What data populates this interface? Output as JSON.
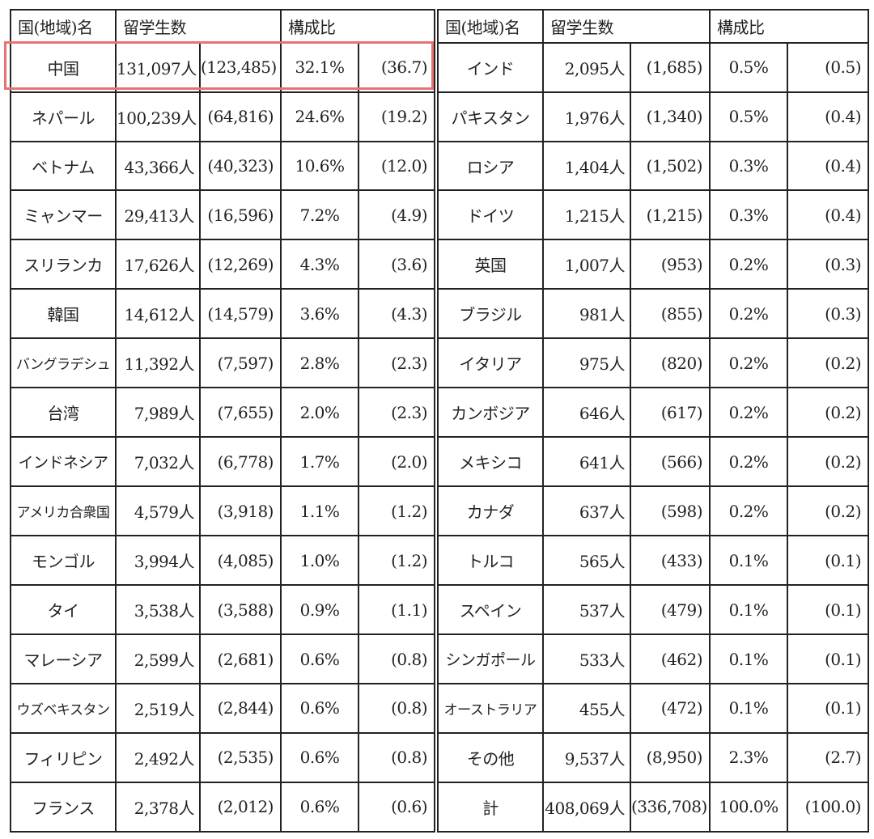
{
  "header": {
    "country_label": "国(地域)名",
    "students_label": "留学生数",
    "ratio_label": "構成比"
  },
  "highlight_color": "#e57373",
  "rows": [
    {
      "left": {
        "name": "中国",
        "count": "131,097人",
        "prev": "(123,485)",
        "ratio": "32.1%",
        "prev_ratio": "(36.7)"
      },
      "right": {
        "name": "インド",
        "count": "2,095人",
        "prev": "(1,685)",
        "ratio": "0.5%",
        "prev_ratio": "(0.5)"
      }
    },
    {
      "left": {
        "name": "ネパール",
        "count": "100,239人",
        "prev": "(64,816)",
        "ratio": "24.6%",
        "prev_ratio": "(19.2)"
      },
      "right": {
        "name": "パキスタン",
        "count": "1,976人",
        "prev": "(1,340)",
        "ratio": "0.5%",
        "prev_ratio": "(0.4)"
      }
    },
    {
      "left": {
        "name": "ベトナム",
        "count": "43,366人",
        "prev": "(40,323)",
        "ratio": "10.6%",
        "prev_ratio": "(12.0)"
      },
      "right": {
        "name": "ロシア",
        "count": "1,404人",
        "prev": "(1,502)",
        "ratio": "0.3%",
        "prev_ratio": "(0.4)"
      }
    },
    {
      "left": {
        "name": "ミャンマー",
        "count": "29,413人",
        "prev": "(16,596)",
        "ratio": "7.2%",
        "prev_ratio": "(4.9)"
      },
      "right": {
        "name": "ドイツ",
        "count": "1,215人",
        "prev": "(1,215)",
        "ratio": "0.3%",
        "prev_ratio": "(0.4)"
      }
    },
    {
      "left": {
        "name": "スリランカ",
        "count": "17,626人",
        "prev": "(12,269)",
        "ratio": "4.3%",
        "prev_ratio": "(3.6)"
      },
      "right": {
        "name": "英国",
        "count": "1,007人",
        "prev": "(953)",
        "ratio": "0.2%",
        "prev_ratio": "(0.3)"
      }
    },
    {
      "left": {
        "name": "韓国",
        "count": "14,612人",
        "prev": "(14,579)",
        "ratio": "3.6%",
        "prev_ratio": "(4.3)"
      },
      "right": {
        "name": "ブラジル",
        "count": "981人",
        "prev": "(855)",
        "ratio": "0.2%",
        "prev_ratio": "(0.3)"
      }
    },
    {
      "left": {
        "name": "バングラデシュ",
        "count": "11,392人",
        "prev": "(7,597)",
        "ratio": "2.8%",
        "prev_ratio": "(2.3)"
      },
      "right": {
        "name": "イタリア",
        "count": "975人",
        "prev": "(820)",
        "ratio": "0.2%",
        "prev_ratio": "(0.2)"
      }
    },
    {
      "left": {
        "name": "台湾",
        "count": "7,989人",
        "prev": "(7,655)",
        "ratio": "2.0%",
        "prev_ratio": "(2.3)"
      },
      "right": {
        "name": "カンボジア",
        "count": "646人",
        "prev": "(617)",
        "ratio": "0.2%",
        "prev_ratio": "(0.2)"
      }
    },
    {
      "left": {
        "name": "インドネシア",
        "count": "7,032人",
        "prev": "(6,778)",
        "ratio": "1.7%",
        "prev_ratio": "(2.0)"
      },
      "right": {
        "name": "メキシコ",
        "count": "641人",
        "prev": "(566)",
        "ratio": "0.2%",
        "prev_ratio": "(0.2)"
      }
    },
    {
      "left": {
        "name": "アメリカ合衆国",
        "count": "4,579人",
        "prev": "(3,918)",
        "ratio": "1.1%",
        "prev_ratio": "(1.2)"
      },
      "right": {
        "name": "カナダ",
        "count": "637人",
        "prev": "(598)",
        "ratio": "0.2%",
        "prev_ratio": "(0.2)"
      }
    },
    {
      "left": {
        "name": "モンゴル",
        "count": "3,994人",
        "prev": "(4,085)",
        "ratio": "1.0%",
        "prev_ratio": "(1.2)"
      },
      "right": {
        "name": "トルコ",
        "count": "565人",
        "prev": "(433)",
        "ratio": "0.1%",
        "prev_ratio": "(0.1)"
      }
    },
    {
      "left": {
        "name": "タイ",
        "count": "3,538人",
        "prev": "(3,588)",
        "ratio": "0.9%",
        "prev_ratio": "(1.1)"
      },
      "right": {
        "name": "スペイン",
        "count": "537人",
        "prev": "(479)",
        "ratio": "0.1%",
        "prev_ratio": "(0.1)"
      }
    },
    {
      "left": {
        "name": "マレーシア",
        "count": "2,599人",
        "prev": "(2,681)",
        "ratio": "0.6%",
        "prev_ratio": "(0.8)"
      },
      "right": {
        "name": "シンガポール",
        "count": "533人",
        "prev": "(462)",
        "ratio": "0.1%",
        "prev_ratio": "(0.1)"
      }
    },
    {
      "left": {
        "name": "ウズベキスタン",
        "count": "2,519人",
        "prev": "(2,844)",
        "ratio": "0.6%",
        "prev_ratio": "(0.8)"
      },
      "right": {
        "name": "オーストラリア",
        "count": "455人",
        "prev": "(472)",
        "ratio": "0.1%",
        "prev_ratio": "(0.1)"
      }
    },
    {
      "left": {
        "name": "フィリピン",
        "count": "2,492人",
        "prev": "(2,535)",
        "ratio": "0.6%",
        "prev_ratio": "(0.8)"
      },
      "right": {
        "name": "その他",
        "count": "9,537人",
        "prev": "(8,950)",
        "ratio": "2.3%",
        "prev_ratio": "(2.7)"
      }
    },
    {
      "left": {
        "name": "フランス",
        "count": "2,378人",
        "prev": "(2,012)",
        "ratio": "0.6%",
        "prev_ratio": "(0.6)"
      },
      "right": {
        "name": "計",
        "count": "408,069人",
        "prev": "(336,708)",
        "ratio": "100.0%",
        "prev_ratio": "(100.0)"
      }
    }
  ]
}
